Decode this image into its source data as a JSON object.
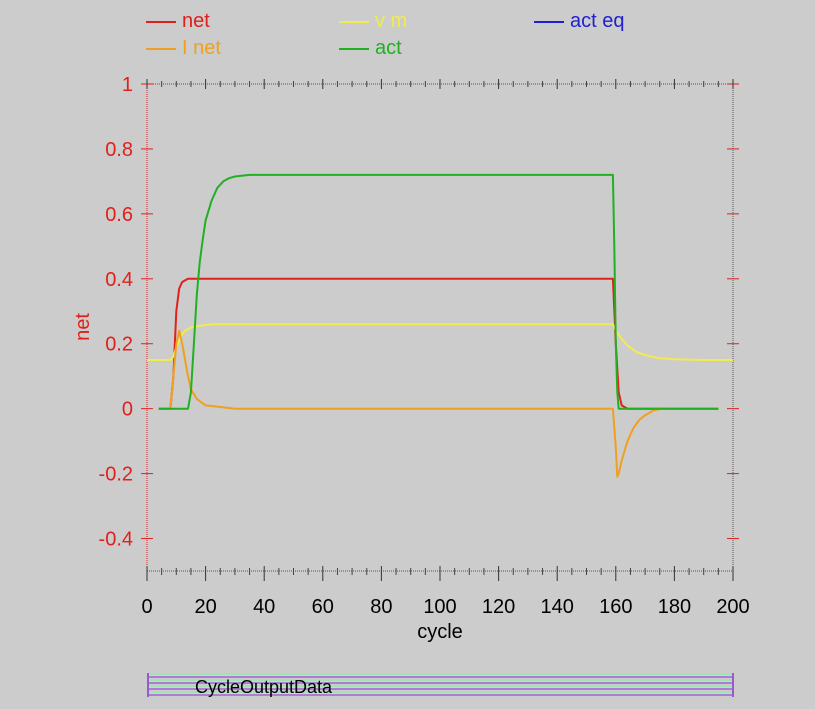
{
  "chart_data": {
    "type": "line",
    "xlabel": "cycle",
    "ylabel": "net",
    "xlim": [
      0,
      200
    ],
    "ylim": [
      -0.5,
      1
    ],
    "xticks": [
      "0",
      "20",
      "40",
      "60",
      "80",
      "100",
      "120",
      "140",
      "160",
      "180",
      "200"
    ],
    "yticks": [
      "-0.4",
      "-0.2",
      "0",
      "0.2",
      "0.4",
      "0.6",
      "0.8",
      "1"
    ],
    "legend_position": "top",
    "series": [
      {
        "name": "net",
        "color": "#e0201c",
        "points": [
          [
            4,
            0
          ],
          [
            8,
            0
          ],
          [
            9,
            0.1
          ],
          [
            10,
            0.3
          ],
          [
            11,
            0.37
          ],
          [
            12,
            0.39
          ],
          [
            14,
            0.4
          ],
          [
            20,
            0.4
          ],
          [
            60,
            0.4
          ],
          [
            100,
            0.4
          ],
          [
            140,
            0.4
          ],
          [
            159,
            0.4
          ],
          [
            160,
            0.2
          ],
          [
            161,
            0.05
          ],
          [
            162,
            0.01
          ],
          [
            164,
            0
          ],
          [
            180,
            0
          ],
          [
            195,
            0
          ]
        ]
      },
      {
        "name": "v m",
        "color": "#f0ec50",
        "points": [
          [
            0,
            0.15
          ],
          [
            8,
            0.15
          ],
          [
            9,
            0.16
          ],
          [
            10,
            0.19
          ],
          [
            11,
            0.21
          ],
          [
            12,
            0.23
          ],
          [
            13,
            0.24
          ],
          [
            15,
            0.25
          ],
          [
            18,
            0.255
          ],
          [
            22,
            0.26
          ],
          [
            60,
            0.26
          ],
          [
            100,
            0.26
          ],
          [
            140,
            0.26
          ],
          [
            159,
            0.26
          ],
          [
            160,
            0.24
          ],
          [
            162,
            0.215
          ],
          [
            164,
            0.195
          ],
          [
            167,
            0.175
          ],
          [
            170,
            0.165
          ],
          [
            175,
            0.155
          ],
          [
            180,
            0.152
          ],
          [
            190,
            0.15
          ],
          [
            200,
            0.15
          ]
        ]
      },
      {
        "name": "act eq",
        "color": "#2020d0",
        "points": []
      },
      {
        "name": "I net",
        "color": "#f0a020",
        "points": [
          [
            4,
            0
          ],
          [
            8,
            0
          ],
          [
            9,
            0.1
          ],
          [
            10,
            0.2
          ],
          [
            11,
            0.24
          ],
          [
            12,
            0.2
          ],
          [
            13,
            0.15
          ],
          [
            14,
            0.1
          ],
          [
            15,
            0.06
          ],
          [
            17,
            0.03
          ],
          [
            20,
            0.01
          ],
          [
            25,
            0.005
          ],
          [
            30,
            0
          ],
          [
            60,
            0
          ],
          [
            100,
            0
          ],
          [
            140,
            0
          ],
          [
            159,
            0
          ],
          [
            160,
            -0.12
          ],
          [
            160.5,
            -0.21
          ],
          [
            161,
            -0.2
          ],
          [
            162,
            -0.16
          ],
          [
            164,
            -0.1
          ],
          [
            166,
            -0.06
          ],
          [
            168,
            -0.035
          ],
          [
            170,
            -0.02
          ],
          [
            173,
            -0.005
          ],
          [
            176,
            0
          ],
          [
            180,
            0
          ],
          [
            195,
            0
          ]
        ]
      },
      {
        "name": "act",
        "color": "#20b020",
        "points": [
          [
            4,
            0
          ],
          [
            14,
            0
          ],
          [
            15,
            0.05
          ],
          [
            16,
            0.2
          ],
          [
            17,
            0.35
          ],
          [
            18,
            0.45
          ],
          [
            19,
            0.52
          ],
          [
            20,
            0.58
          ],
          [
            22,
            0.64
          ],
          [
            24,
            0.68
          ],
          [
            26,
            0.7
          ],
          [
            28,
            0.71
          ],
          [
            30,
            0.715
          ],
          [
            35,
            0.72
          ],
          [
            60,
            0.72
          ],
          [
            100,
            0.72
          ],
          [
            140,
            0.72
          ],
          [
            159,
            0.72
          ],
          [
            159.5,
            0.5
          ],
          [
            160,
            0.2
          ],
          [
            160.5,
            0.05
          ],
          [
            161,
            0
          ],
          [
            165,
            0
          ],
          [
            195,
            0
          ]
        ]
      }
    ]
  },
  "bottom_bar": {
    "label": "CycleOutputData"
  }
}
